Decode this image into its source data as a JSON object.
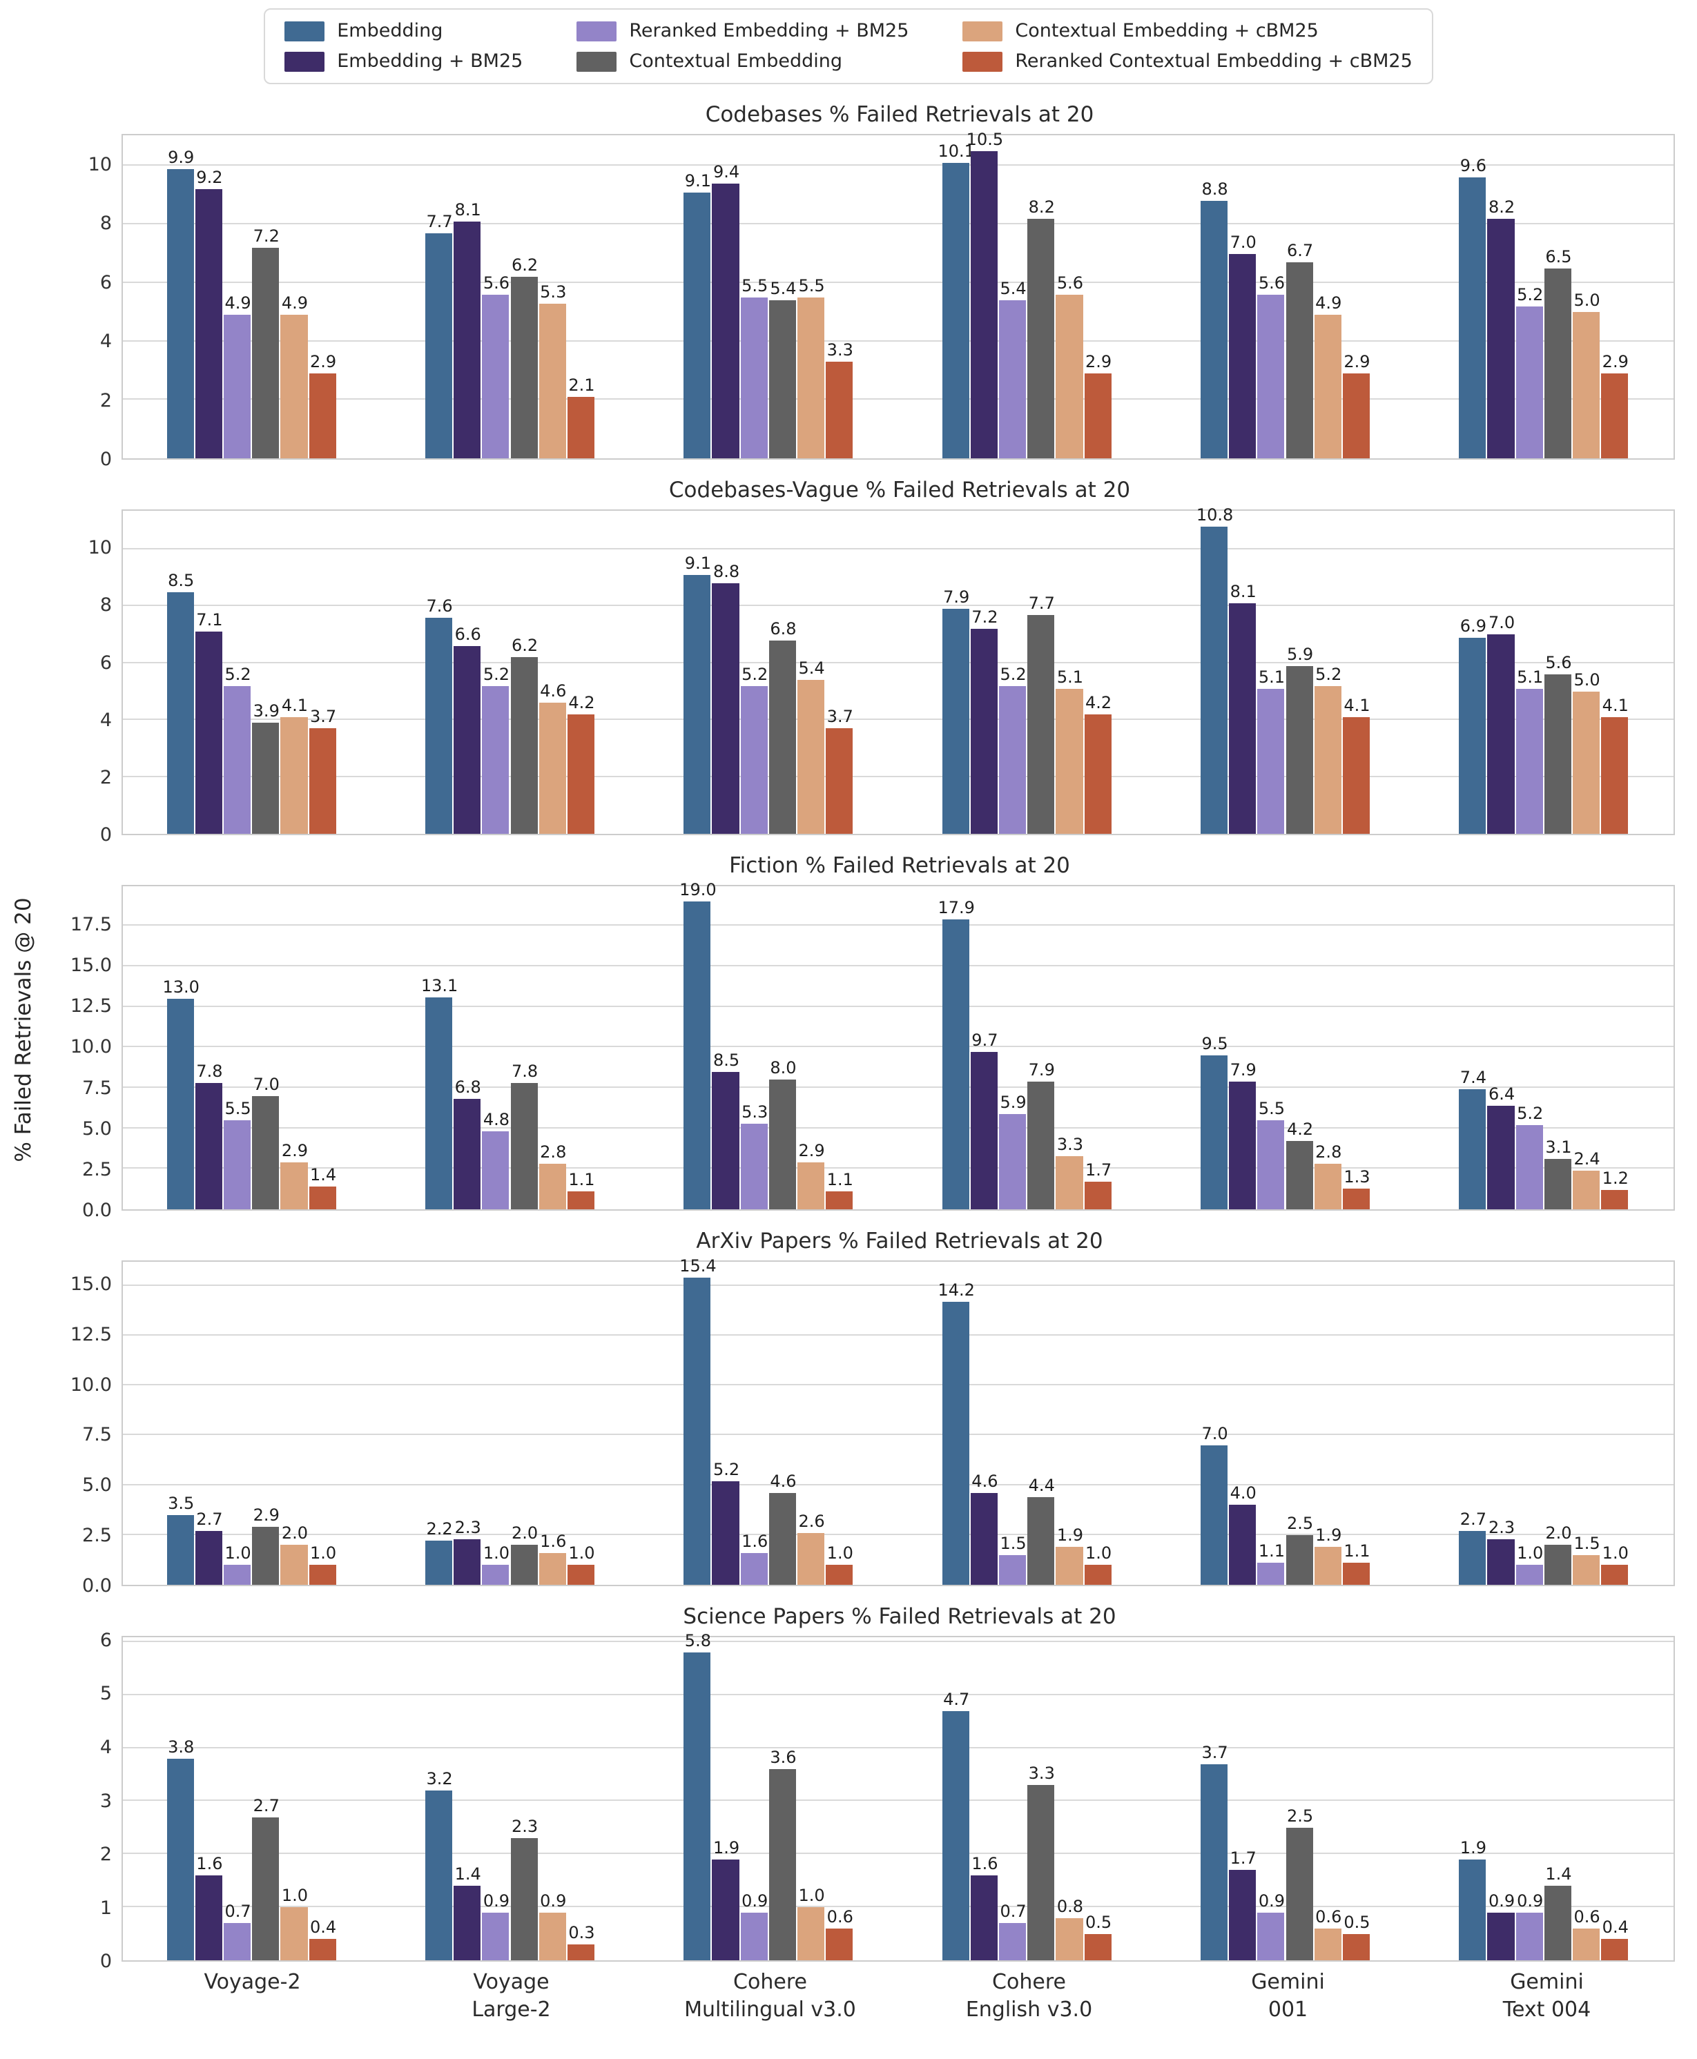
{
  "figure": {
    "ylabel": "% Failed Retrievals @ 20",
    "legend": {
      "ncol": 3,
      "entries": [
        {
          "label": "Embedding",
          "color": "#406a92"
        },
        {
          "label": "Embedding + BM25",
          "color": "#3e2c68"
        },
        {
          "label": "Reranked Embedding + BM25",
          "color": "#9384c8"
        },
        {
          "label": "Contextual Embedding",
          "color": "#616161"
        },
        {
          "label": "Contextual Embedding + cBM25",
          "color": "#dba47d"
        },
        {
          "label": "Reranked Contextual Embedding + cBM25",
          "color": "#bd5a3b"
        }
      ]
    },
    "x_categories_lines": [
      [
        "Voyage-2"
      ],
      [
        "Voyage",
        "Large-2"
      ],
      [
        "Cohere",
        "Multilingual v3.0"
      ],
      [
        "Cohere",
        "English v3.0"
      ],
      [
        "Gemini",
        "001"
      ],
      [
        "Gemini",
        "Text 004"
      ]
    ]
  },
  "chart_data": [
    {
      "type": "bar",
      "title": "Codebases % Failed Retrievals at 20",
      "xlabel": "",
      "ylabel": "",
      "grid": true,
      "categories": [
        "Voyage-2",
        "Voyage Large-2",
        "Cohere Multilingual v3.0",
        "Cohere English v3.0",
        "Gemini 001",
        "Gemini Text 004"
      ],
      "yticks": [
        "0",
        "2",
        "4",
        "6",
        "8",
        "10"
      ],
      "ylim": [
        0,
        11.05
      ],
      "series": [
        {
          "name": "Embedding",
          "values": [
            9.9,
            7.7,
            9.1,
            10.1,
            8.8,
            9.6
          ]
        },
        {
          "name": "Embedding + BM25",
          "values": [
            9.2,
            8.1,
            9.4,
            10.5,
            7.0,
            8.2
          ]
        },
        {
          "name": "Reranked Embedding + BM25",
          "values": [
            4.9,
            5.6,
            5.5,
            5.4,
            5.6,
            5.2
          ]
        },
        {
          "name": "Contextual Embedding",
          "values": [
            7.2,
            6.2,
            5.4,
            8.2,
            6.7,
            6.5
          ]
        },
        {
          "name": "Contextual Embedding + cBM25",
          "values": [
            4.9,
            5.3,
            5.5,
            5.6,
            4.9,
            5.0
          ]
        },
        {
          "name": "Reranked Contextual Embedding + cBM25",
          "values": [
            2.9,
            2.1,
            3.3,
            2.9,
            2.9,
            2.9
          ]
        }
      ]
    },
    {
      "type": "bar",
      "title": "Codebases-Vague % Failed Retrievals at 20",
      "xlabel": "",
      "ylabel": "",
      "grid": true,
      "categories": [
        "Voyage-2",
        "Voyage Large-2",
        "Cohere Multilingual v3.0",
        "Cohere English v3.0",
        "Gemini 001",
        "Gemini Text 004"
      ],
      "yticks": [
        "0",
        "2",
        "4",
        "6",
        "8",
        "10"
      ],
      "ylim": [
        0,
        11.35
      ],
      "series": [
        {
          "name": "Embedding",
          "values": [
            8.5,
            7.6,
            9.1,
            7.9,
            10.8,
            6.9
          ]
        },
        {
          "name": "Embedding + BM25",
          "values": [
            7.1,
            6.6,
            8.8,
            7.2,
            8.1,
            7.0
          ]
        },
        {
          "name": "Reranked Embedding + BM25",
          "values": [
            5.2,
            5.2,
            5.2,
            5.2,
            5.1,
            5.1
          ]
        },
        {
          "name": "Contextual Embedding",
          "values": [
            3.9,
            6.2,
            6.8,
            7.7,
            5.9,
            5.6
          ]
        },
        {
          "name": "Contextual Embedding + cBM25",
          "values": [
            4.1,
            4.6,
            5.4,
            5.1,
            5.2,
            5.0
          ]
        },
        {
          "name": "Reranked Contextual Embedding + cBM25",
          "values": [
            3.7,
            4.2,
            3.7,
            4.2,
            4.1,
            4.1
          ]
        }
      ]
    },
    {
      "type": "bar",
      "title": "Fiction % Failed Retrievals at 20",
      "xlabel": "",
      "ylabel": "",
      "grid": true,
      "categories": [
        "Voyage-2",
        "Voyage Large-2",
        "Cohere Multilingual v3.0",
        "Cohere English v3.0",
        "Gemini 001",
        "Gemini Text 004"
      ],
      "yticks": [
        "0.0",
        "2.5",
        "5.0",
        "7.5",
        "10.0",
        "12.5",
        "15.0",
        "17.5"
      ],
      "ylim": [
        0,
        19.95
      ],
      "series": [
        {
          "name": "Embedding",
          "values": [
            13.0,
            13.1,
            19.0,
            17.9,
            9.5,
            7.4
          ]
        },
        {
          "name": "Embedding + BM25",
          "values": [
            7.8,
            6.8,
            8.5,
            9.7,
            7.9,
            6.4
          ]
        },
        {
          "name": "Reranked Embedding + BM25",
          "values": [
            5.5,
            4.8,
            5.3,
            5.9,
            5.5,
            5.2
          ]
        },
        {
          "name": "Contextual Embedding",
          "values": [
            7.0,
            7.8,
            8.0,
            7.9,
            4.2,
            3.1
          ]
        },
        {
          "name": "Contextual Embedding + cBM25",
          "values": [
            2.9,
            2.8,
            2.9,
            3.3,
            2.8,
            2.4
          ]
        },
        {
          "name": "Reranked Contextual Embedding + cBM25",
          "values": [
            1.4,
            1.1,
            1.1,
            1.7,
            1.3,
            1.2
          ]
        }
      ]
    },
    {
      "type": "bar",
      "title": "ArXiv Papers % Failed Retrievals at 20",
      "xlabel": "",
      "ylabel": "",
      "grid": true,
      "categories": [
        "Voyage-2",
        "Voyage Large-2",
        "Cohere Multilingual v3.0",
        "Cohere English v3.0",
        "Gemini 001",
        "Gemini Text 004"
      ],
      "yticks": [
        "0.0",
        "2.5",
        "5.0",
        "7.5",
        "10.0",
        "12.5",
        "15.0"
      ],
      "ylim": [
        0,
        16.2
      ],
      "series": [
        {
          "name": "Embedding",
          "values": [
            3.5,
            2.2,
            15.4,
            14.2,
            7.0,
            2.7
          ]
        },
        {
          "name": "Embedding + BM25",
          "values": [
            2.7,
            2.3,
            5.2,
            4.6,
            4.0,
            2.3
          ]
        },
        {
          "name": "Reranked Embedding + BM25",
          "values": [
            1.0,
            1.0,
            1.6,
            1.5,
            1.1,
            1.0
          ]
        },
        {
          "name": "Contextual Embedding",
          "values": [
            2.9,
            2.0,
            4.6,
            4.4,
            2.5,
            2.0
          ]
        },
        {
          "name": "Contextual Embedding + cBM25",
          "values": [
            2.0,
            1.6,
            2.6,
            1.9,
            1.9,
            1.5
          ]
        },
        {
          "name": "Reranked Contextual Embedding + cBM25",
          "values": [
            1.0,
            1.0,
            1.0,
            1.0,
            1.1,
            1.0
          ]
        }
      ]
    },
    {
      "type": "bar",
      "title": "Science Papers % Failed Retrievals at 20",
      "xlabel": "",
      "ylabel": "",
      "grid": true,
      "categories": [
        "Voyage-2",
        "Voyage Large-2",
        "Cohere Multilingual v3.0",
        "Cohere English v3.0",
        "Gemini 001",
        "Gemini Text 004"
      ],
      "yticks": [
        "0",
        "1",
        "2",
        "3",
        "4",
        "5",
        "6"
      ],
      "ylim": [
        0,
        6.09
      ],
      "series": [
        {
          "name": "Embedding",
          "values": [
            3.8,
            3.2,
            5.8,
            4.7,
            3.7,
            1.9
          ]
        },
        {
          "name": "Embedding + BM25",
          "values": [
            1.6,
            1.4,
            1.9,
            1.6,
            1.7,
            0.9
          ]
        },
        {
          "name": "Reranked Embedding + BM25",
          "values": [
            0.7,
            0.9,
            0.9,
            0.7,
            0.9,
            0.9
          ]
        },
        {
          "name": "Contextual Embedding",
          "values": [
            2.7,
            2.3,
            3.6,
            3.3,
            2.5,
            1.4
          ]
        },
        {
          "name": "Contextual Embedding + cBM25",
          "values": [
            1.0,
            0.9,
            1.0,
            0.8,
            0.6,
            0.6
          ]
        },
        {
          "name": "Reranked Contextual Embedding + cBM25",
          "values": [
            0.4,
            0.3,
            0.6,
            0.5,
            0.5,
            0.4
          ]
        }
      ]
    }
  ]
}
